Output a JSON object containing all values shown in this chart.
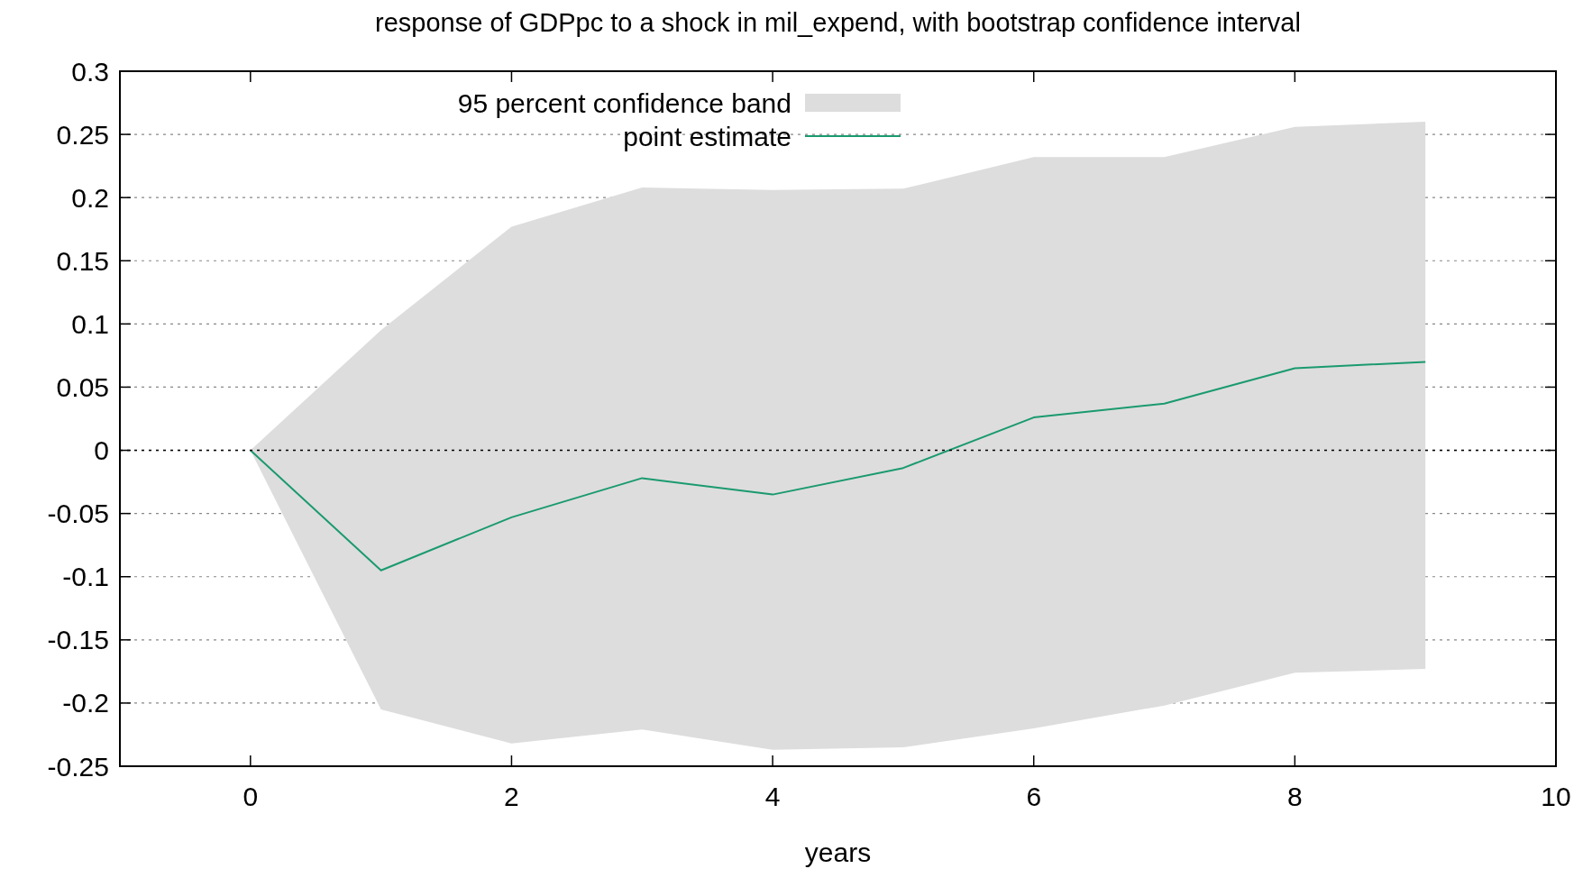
{
  "chart_data": {
    "type": "line",
    "title": "response of GDPpc to a shock in mil_expend, with bootstrap confidence interval",
    "xlabel": "years",
    "x": [
      0,
      1,
      2,
      3,
      4,
      5,
      6,
      7,
      8,
      9
    ],
    "series": [
      {
        "name": "point estimate",
        "color": "#1a9a6e",
        "values": [
          0,
          -0.095,
          -0.053,
          -0.022,
          -0.035,
          -0.014,
          0.026,
          0.037,
          0.065,
          0.07
        ],
        "lower": [
          0,
          -0.205,
          -0.232,
          -0.221,
          -0.237,
          -0.235,
          -0.22,
          -0.202,
          -0.176,
          -0.173
        ],
        "upper": [
          0,
          0.095,
          0.177,
          0.208,
          0.206,
          0.207,
          0.232,
          0.232,
          0.256,
          0.26
        ]
      }
    ],
    "annotations": [
      "95 percent confidence band"
    ],
    "xlim": [
      -1,
      10
    ],
    "xticks": [
      0,
      2,
      4,
      6,
      8,
      10
    ],
    "ylim": [
      -0.25,
      0.3
    ],
    "yticks": [
      -0.25,
      -0.2,
      -0.15,
      -0.1,
      -0.05,
      0,
      0.05,
      0.1,
      0.15,
      0.2,
      0.25,
      0.3
    ],
    "grid": "y",
    "line_style": "solid",
    "legend": "top left",
    "ref_lines": [
      {
        "axis": "y",
        "value": 0,
        "color": "#000000",
        "line_style": "dotted"
      }
    ]
  }
}
